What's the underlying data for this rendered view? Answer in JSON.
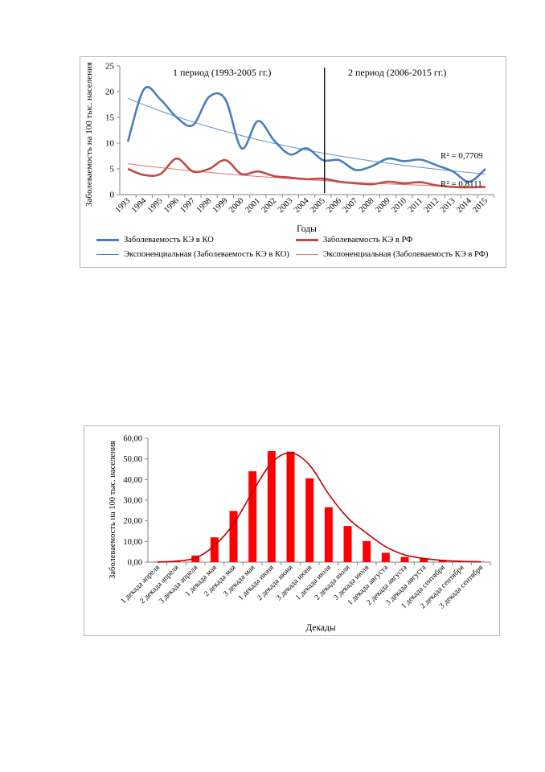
{
  "chart_data": [
    {
      "type": "line",
      "title": "",
      "xlabel": "Годы",
      "ylabel": "Заболеваемость на 100 тыс. населения",
      "ylim": [
        0,
        25
      ],
      "yticks": [
        "0",
        "5",
        "10",
        "15",
        "20",
        "25"
      ],
      "categories": [
        "1993",
        "1994",
        "1995",
        "1996",
        "1997",
        "1998",
        "1999",
        "2000",
        "2001",
        "2002",
        "2003",
        "2004",
        "2005",
        "2006",
        "2007",
        "2008",
        "2009",
        "2010",
        "2011",
        "2012",
        "2013",
        "2014",
        "2015"
      ],
      "series": [
        {
          "name": "Заболеваемость КЭ в КО",
          "color": "#4a7ebb",
          "style": "smooth-thick",
          "values": [
            10.3,
            20.5,
            18.5,
            15.0,
            13.5,
            19.0,
            18.5,
            9.0,
            14.3,
            10.5,
            7.8,
            9.0,
            6.7,
            6.7,
            4.8,
            5.5,
            7.0,
            6.5,
            6.8,
            5.7,
            4.5,
            2.5,
            5.0
          ]
        },
        {
          "name": "Заболеваемость КЭ в РФ",
          "color": "#be4b48",
          "style": "smooth-thick",
          "values": [
            5.0,
            3.8,
            4.0,
            7.0,
            4.5,
            5.0,
            6.7,
            4.0,
            4.5,
            3.6,
            3.3,
            3.0,
            3.1,
            2.5,
            2.2,
            2.0,
            2.5,
            2.2,
            2.4,
            1.8,
            1.5,
            1.4,
            1.5
          ]
        },
        {
          "name": "Экспоненциальная (Заболеваемость КЭ в КО)",
          "color": "#4a7ebb",
          "style": "trend",
          "from": 18.7,
          "to": 4.0
        },
        {
          "name": "Экспоненциальная (Заболеваемость КЭ в РФ)",
          "color": "#be4b48",
          "style": "trend",
          "from": 6.0,
          "to": 1.4
        }
      ],
      "annotations": {
        "period1": "1 период (1993-2005 гг.)",
        "period2": "2 период (2006-2015 гг.)",
        "r2_ko": "R² = 0,7709",
        "r2_rf": "R² = 0,8111"
      },
      "divider_after": "2005",
      "legend_position": "bottom"
    },
    {
      "type": "bar",
      "title": "",
      "xlabel": "Декады",
      "ylabel": "Заболеваемость на 100 тыс. населения",
      "ylim": [
        0,
        60
      ],
      "yticks": [
        "0,00",
        "10,00",
        "20,00",
        "30,00",
        "40,00",
        "50,00",
        "60,00"
      ],
      "categories": [
        "1 декада апреля",
        "2 декада апреля",
        "3 декада апреля",
        "1 декада мая",
        "2 декада мая",
        "3 декада мая",
        "1 декада июня",
        "2 декада июня",
        "3 декада июня",
        "1 декада июля",
        "2 декада июля",
        "3 декада июля",
        "1 декада августа",
        "2 декада августа",
        "3 декада августа",
        "1 декада сентября",
        "2 декада сентября",
        "3 декада сентября"
      ],
      "series": [
        {
          "type": "bar",
          "color": "#ff0000",
          "values": [
            0.2,
            0.5,
            3.2,
            12.0,
            24.8,
            44.0,
            53.8,
            53.5,
            40.6,
            26.6,
            17.5,
            10.2,
            4.5,
            2.5,
            1.8,
            1.0,
            0.4,
            0.2
          ]
        },
        {
          "type": "line",
          "color": "#c00000",
          "values": [
            0.0,
            0.5,
            2.0,
            8.0,
            18.5,
            34.0,
            48.0,
            53.0,
            47.0,
            33.0,
            21.5,
            14.0,
            7.5,
            3.5,
            1.8,
            0.8,
            0.4,
            0.1
          ]
        }
      ],
      "grid": false
    }
  ]
}
